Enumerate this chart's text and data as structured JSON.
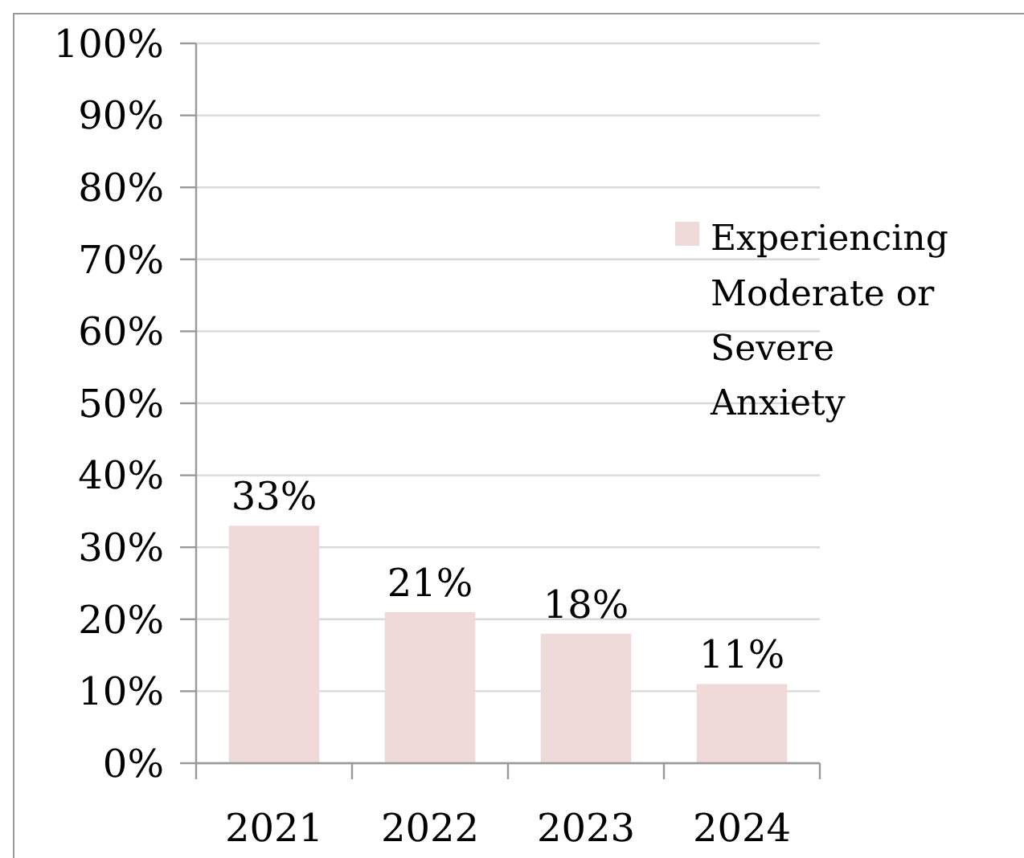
{
  "chart_data": {
    "type": "bar",
    "categories": [
      "2021",
      "2022",
      "2023",
      "2024"
    ],
    "series": [
      {
        "name": "Experiencing Moderate or Severe Anxiety",
        "color": "#f0d9d9",
        "values": [
          33,
          21,
          18,
          11
        ]
      }
    ],
    "value_labels": [
      "33%",
      "21%",
      "18%",
      "11%"
    ],
    "ylim": [
      0,
      100
    ],
    "yticks": [
      {
        "value": 0,
        "label": "0%"
      },
      {
        "value": 10,
        "label": "10%"
      },
      {
        "value": 20,
        "label": "20%"
      },
      {
        "value": 30,
        "label": "30%"
      },
      {
        "value": 40,
        "label": "40%"
      },
      {
        "value": 50,
        "label": "50%"
      },
      {
        "value": 60,
        "label": "60%"
      },
      {
        "value": 70,
        "label": "70%"
      },
      {
        "value": 80,
        "label": "80%"
      },
      {
        "value": 90,
        "label": "90%"
      },
      {
        "value": 100,
        "label": "100%"
      }
    ],
    "grid": "y",
    "legend": "right"
  }
}
